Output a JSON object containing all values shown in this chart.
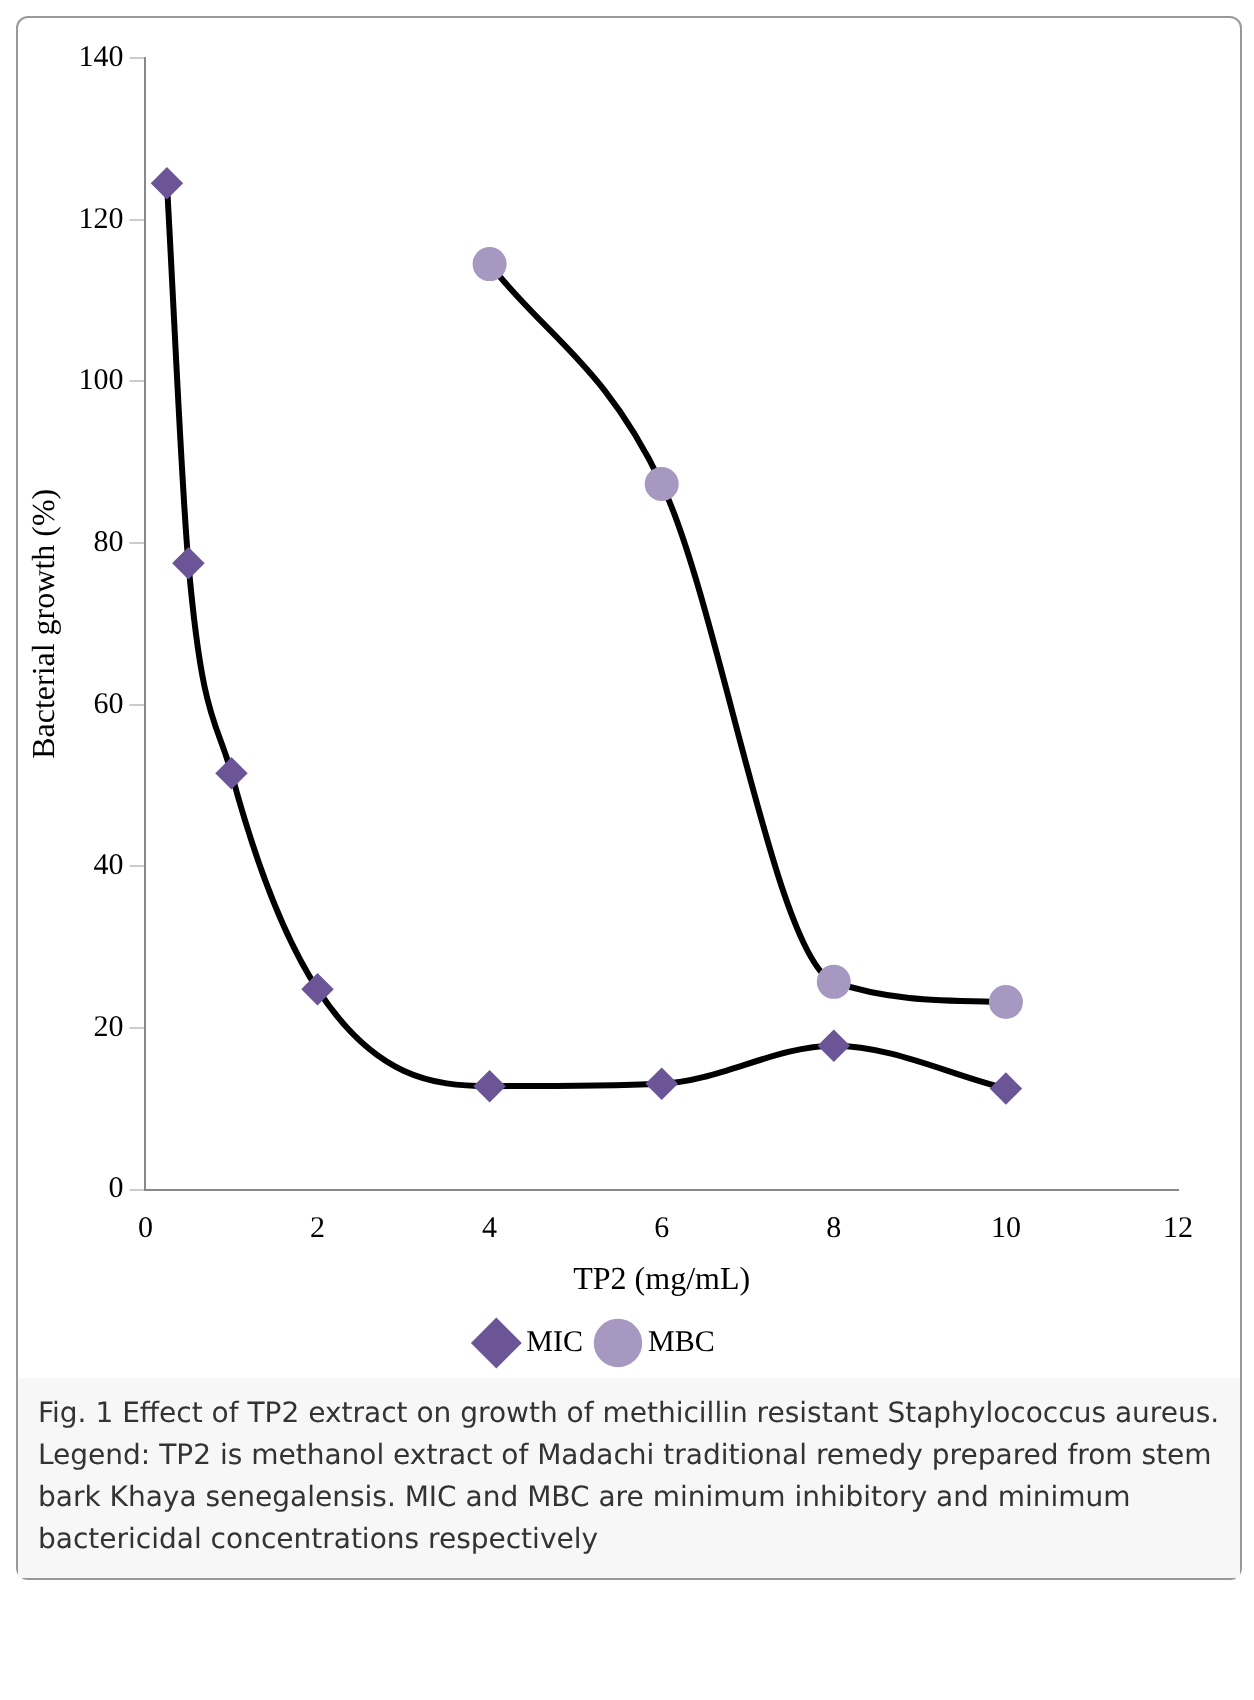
{
  "chart_data": {
    "type": "line",
    "xlabel": "TP2 (mg/mL)",
    "ylabel": "Bacterial growth (%)",
    "xlim": [
      0,
      12
    ],
    "xticks": [
      0,
      2,
      4,
      6,
      8,
      10,
      12
    ],
    "ylim": [
      0,
      140
    ],
    "yticks": [
      0,
      20,
      40,
      60,
      80,
      100,
      120,
      140
    ],
    "grid": false,
    "legend": "bottom",
    "series": [
      {
        "name": "MIC",
        "color": "#6b5596",
        "marker": "diamond",
        "x": [
          0.25,
          0.5,
          1,
          2,
          4,
          6,
          8,
          10
        ],
        "values": [
          124.5,
          77.5,
          51.5,
          24.8,
          12.8,
          13.1,
          17.8,
          12.5
        ]
      },
      {
        "name": "MBC",
        "color": "#a798c2",
        "marker": "circle",
        "x": [
          4,
          6,
          8,
          10
        ],
        "values": [
          114.5,
          87.3,
          25.7,
          23.2
        ]
      }
    ],
    "annotations": [
      "Fig. 1 Effect of TP2 extract on growth of methicillin resistant Staphylococcus aureus. Legend: TP2 is methanol extract of Madachi traditional remedy prepared from stem bark Khaya senegalensis. MIC and MBC are minimum inhibitory and minimum bactericidal concentrations respectively"
    ]
  }
}
